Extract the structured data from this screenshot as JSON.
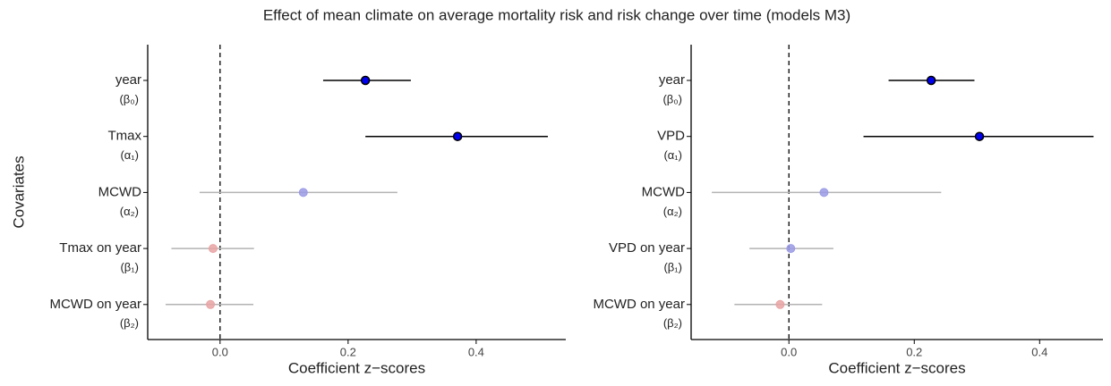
{
  "title": "Effect of mean climate on average mortality risk and risk change over time (models M3)",
  "chart_data": [
    {
      "type": "forest",
      "ylabel": "Covariates",
      "xlabel": "Coefficient z−scores",
      "categories": [
        "year",
        "Tmax",
        "MCWD",
        "Tmax on year",
        "MCWD on year"
      ],
      "category_symbols": [
        "(β₀)",
        "(α₁)",
        "(α₂)",
        "(β₁)",
        "(β₂)"
      ],
      "values": [
        0.227,
        0.371,
        0.13,
        -0.011,
        -0.015
      ],
      "lower": [
        0.161,
        0.227,
        -0.032,
        -0.076,
        -0.085
      ],
      "upper": [
        0.298,
        0.512,
        0.277,
        0.053,
        0.052
      ],
      "point_colors": [
        "#0000ee",
        "#0000ee",
        "#9a9ae6",
        "#e9a3a3",
        "#e9a3a3"
      ],
      "ci_colors": [
        "#000000",
        "#000000",
        "#b3b3b3",
        "#b3b3b3",
        "#b3b3b3"
      ],
      "xlim": [
        -0.113,
        0.54
      ],
      "xticks": [
        {
          "value": 0,
          "label": "0.0"
        },
        0.2,
        0.4
      ],
      "vline": 0
    },
    {
      "type": "forest",
      "xlabel": "Coefficient z−scores",
      "categories": [
        "year",
        "VPD",
        "MCWD",
        "VPD on year",
        "MCWD on year"
      ],
      "category_symbols": [
        "(β₀)",
        "(α₁)",
        "(α₂)",
        "(β₁)",
        "(β₂)"
      ],
      "values": [
        0.227,
        0.304,
        0.056,
        0.003,
        -0.014
      ],
      "lower": [
        0.159,
        0.119,
        -0.123,
        -0.063,
        -0.087
      ],
      "upper": [
        0.296,
        0.486,
        0.243,
        0.071,
        0.053
      ],
      "point_colors": [
        "#0000ee",
        "#0000ee",
        "#9a9ae6",
        "#9a9ae6",
        "#e9a3a3"
      ],
      "ci_colors": [
        "#000000",
        "#000000",
        "#b3b3b3",
        "#b3b3b3",
        "#b3b3b3"
      ],
      "xlim": [
        -0.156,
        0.501
      ],
      "xticks": [
        {
          "value": 0,
          "label": "0.0"
        },
        0.2,
        0.4
      ],
      "vline": 0
    }
  ]
}
